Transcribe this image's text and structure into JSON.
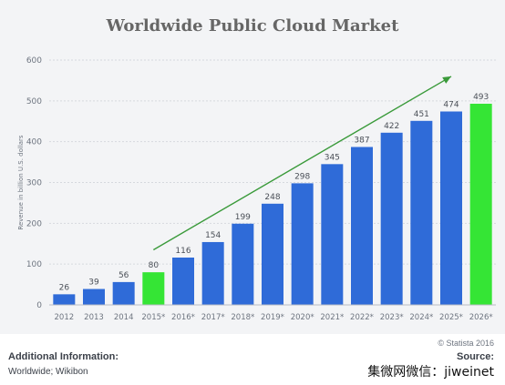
{
  "chart_data": {
    "type": "bar",
    "title": "Worldwide Public Cloud Market",
    "ylabel": "Revenue in billion U.S. dollars",
    "xlabel": "",
    "ylim": [
      0,
      600
    ],
    "yticks": [
      0,
      100,
      200,
      300,
      400,
      500,
      600
    ],
    "grid": true,
    "categories": [
      "2012",
      "2013",
      "2014",
      "2015*",
      "2016*",
      "2017*",
      "2018*",
      "2019*",
      "2020*",
      "2021*",
      "2022*",
      "2023*",
      "2024*",
      "2025*",
      "2026*"
    ],
    "values": [
      26,
      39,
      56,
      80,
      116,
      154,
      199,
      248,
      298,
      345,
      387,
      422,
      451,
      474,
      493
    ],
    "data_labels": [
      "26",
      "39",
      "56",
      "80",
      "116",
      "154",
      "199",
      "248",
      "298",
      "345",
      "387",
      "422",
      "451",
      "474",
      "493"
    ],
    "bar_colors": [
      "#2f6bd8",
      "#2f6bd8",
      "#2f6bd8",
      "#35e535",
      "#2f6bd8",
      "#2f6bd8",
      "#2f6bd8",
      "#2f6bd8",
      "#2f6bd8",
      "#2f6bd8",
      "#2f6bd8",
      "#2f6bd8",
      "#2f6bd8",
      "#2f6bd8",
      "#35e535"
    ],
    "annotations": [
      {
        "type": "trend-arrow",
        "color": "#3a9a3a",
        "from": {
          "x": "2015*",
          "y": 135
        },
        "to": {
          "x": "2025*",
          "y": 560
        }
      }
    ]
  },
  "footer": {
    "credit": "© Statista 2016",
    "additional_info_label": "Additional Information:",
    "additional_info_value": "Worldwide; Wikibon",
    "source_label": "Source:",
    "watermark": "集微网微信：jiweinet"
  },
  "colors": {
    "panel_background": "#f3f4f6",
    "grid": "#d6d9de",
    "axis_text": "#6e7580",
    "bar_blue": "#2f6bd8",
    "bar_green": "#35e535",
    "trend_arrow": "#3a9a3a"
  }
}
